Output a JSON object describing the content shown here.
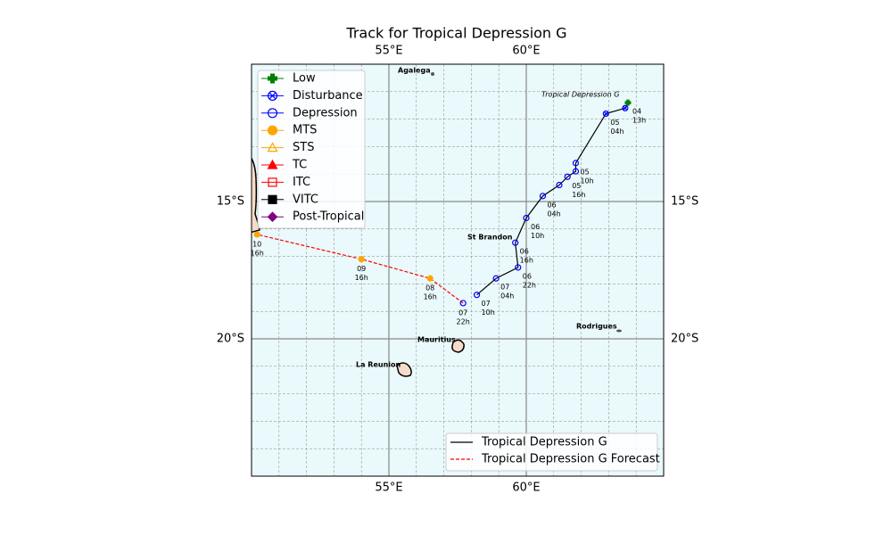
{
  "chart_data": {
    "type": "track-map",
    "title": "Track for Tropical Depression G",
    "xlim": [
      50,
      65
    ],
    "ylim": [
      -25,
      -10
    ],
    "xticks": [
      {
        "value": 55,
        "label": "55°E"
      },
      {
        "value": 60,
        "label": "60°E"
      }
    ],
    "yticks": [
      {
        "value": -15,
        "label": "15°S"
      },
      {
        "value": -20,
        "label": "20°S"
      }
    ],
    "grid": true,
    "minor_grid": true,
    "storm_label": "Tropical Depression G",
    "places": [
      "Agalega",
      "St Brandon",
      "Mauritius",
      "La Reunion",
      "Rodrigues"
    ],
    "categories": [
      {
        "name": "Low",
        "color": "#008000",
        "marker": "plus"
      },
      {
        "name": "Disturbance",
        "color": "#0000ff",
        "marker": "circle-x"
      },
      {
        "name": "Depression",
        "color": "#0000ff",
        "marker": "circle-open"
      },
      {
        "name": "MTS",
        "color": "#ffa500",
        "marker": "circle"
      },
      {
        "name": "STS",
        "color": "#ffa500",
        "marker": "triangle-open"
      },
      {
        "name": "TC",
        "color": "#ff0000",
        "marker": "triangle"
      },
      {
        "name": "ITC",
        "color": "#ff0000",
        "marker": "square-open"
      },
      {
        "name": "VITC",
        "color": "#000000",
        "marker": "square"
      },
      {
        "name": "Post-Tropical",
        "color": "#800080",
        "marker": "diamond"
      }
    ],
    "series": [
      {
        "name": "Tropical Depression G",
        "color": "#000000",
        "dashed": false,
        "label_color": "#000000",
        "lon": [
          63.7,
          63.6,
          62.9,
          61.8,
          61.8,
          61.5,
          61.2,
          60.6,
          60.0,
          59.6,
          59.7,
          58.9,
          58.2
        ],
        "lat": [
          -11.4,
          -11.6,
          -11.8,
          -13.6,
          -13.9,
          -14.1,
          -14.4,
          -14.8,
          -15.6,
          -16.5,
          -17.4,
          -17.8,
          -18.4
        ],
        "category": [
          "Low",
          "Disturbance",
          "Disturbance",
          "Depression",
          "Depression",
          "Depression",
          "Depression",
          "Depression",
          "Depression",
          "Depression",
          "Depression",
          "Depression",
          "Depression"
        ],
        "labels": [
          [
            "04",
            "13h"
          ],
          null,
          [
            "05",
            "04h"
          ],
          [
            "05",
            "10h"
          ],
          null,
          [
            "05",
            "16h"
          ],
          null,
          [
            "06",
            "04h"
          ],
          [
            "06",
            "10h"
          ],
          [
            "06",
            "16h"
          ],
          [
            "06",
            "22h"
          ],
          [
            "07",
            "04h"
          ],
          [
            "07",
            "10h"
          ]
        ]
      },
      {
        "name": "Tropical Depression G Forecast",
        "color": "#ff0000",
        "dashed": true,
        "label_color": "#ff0000",
        "lon": [
          57.7,
          56.5,
          54.0,
          50.2
        ],
        "lat": [
          -18.7,
          -17.8,
          -17.1,
          -16.2
        ],
        "category": [
          "Depression",
          "MTS",
          "MTS",
          "MTS"
        ],
        "labels": [
          [
            "07",
            "22h"
          ],
          [
            "08",
            "16h"
          ],
          [
            "09",
            "16h"
          ],
          [
            "10",
            "16h"
          ]
        ]
      }
    ]
  }
}
